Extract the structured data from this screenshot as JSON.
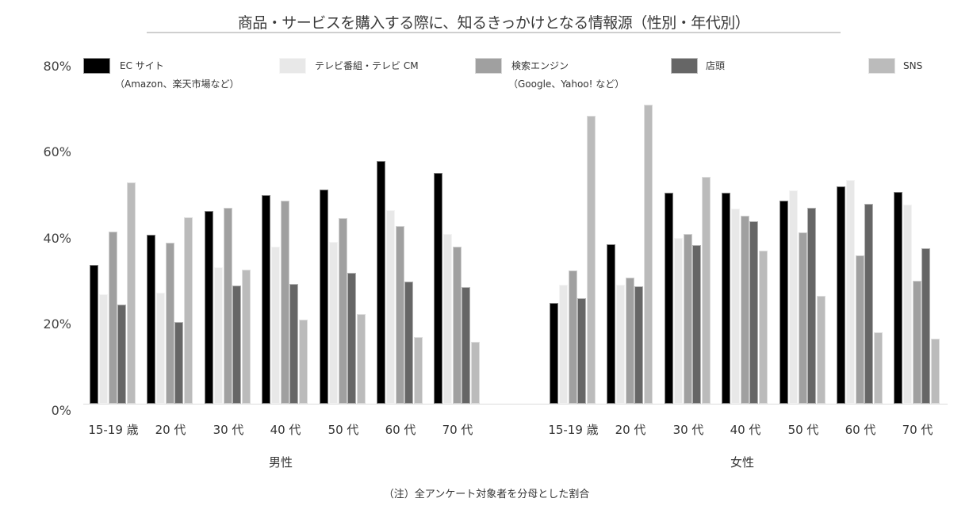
{
  "title": "商品・サービスを購入する際に、知るきっかけとなる情報源（性別・年代別）",
  "footnote": "（注）全アンケート対象者を分母とした割合",
  "yaxis": {
    "ticks": [
      "80%",
      "60%",
      "40%",
      "20%",
      "0%"
    ]
  },
  "legend": [
    {
      "label": "EC サイト",
      "sub": "（Amazon、楽天市場など）",
      "color": "#000000"
    },
    {
      "label": "テレビ番組・テレビ CM",
      "sub": "",
      "color": "#e8e8e8"
    },
    {
      "label": "検索エンジン",
      "sub": "（Google、Yahoo! など）",
      "color": "#a0a0a0"
    },
    {
      "label": "店頭",
      "sub": "",
      "color": "#666666"
    },
    {
      "label": "SNS",
      "sub": "",
      "color": "#bbbbbb"
    }
  ],
  "groups": [
    {
      "label": "男性",
      "categories": [
        "15-19 歳",
        "20 代",
        "30 代",
        "40 代",
        "50 代",
        "60 代",
        "70 代"
      ]
    },
    {
      "label": "女性",
      "categories": [
        "15-19 歳",
        "20 代",
        "30 代",
        "40 代",
        "50 代",
        "60 代",
        "70 代"
      ]
    }
  ],
  "chart_data": {
    "type": "bar",
    "title": "商品・サービスを購入する際に、知るきっかけとなる情報源（性別・年代別）",
    "xlabel": "",
    "ylabel": "",
    "ylim": [
      0,
      80
    ],
    "yticks": [
      0,
      20,
      40,
      60,
      80
    ],
    "grid": false,
    "legend_position": "top",
    "note": "（注）全アンケート対象者を分母とした割合",
    "categories": [
      "男性 15-19 歳",
      "男性 20 代",
      "男性 30 代",
      "男性 40 代",
      "男性 50 代",
      "男性 60 代",
      "男性 70 代",
      "女性 15-19 歳",
      "女性 20 代",
      "女性 30 代",
      "女性 40 代",
      "女性 50 代",
      "女性 60 代",
      "女性 70 代"
    ],
    "series": [
      {
        "name": "EC サイト（Amazon、楽天市場など）",
        "color": "#000000",
        "values": [
          32.3,
          39.3,
          44.8,
          48.5,
          49.8,
          56.4,
          53.6,
          23.4,
          37.0,
          49.0,
          49.0,
          47.2,
          50.5,
          49.2
        ]
      },
      {
        "name": "テレビ番組・テレビ CM",
        "color": "#e8e8e8",
        "values": [
          25.4,
          25.8,
          31.7,
          36.5,
          37.6,
          45.0,
          39.4,
          27.6,
          27.6,
          38.5,
          45.3,
          49.6,
          52.0,
          46.3
        ]
      },
      {
        "name": "検索エンジン（Google、Yahoo! など）",
        "color": "#a0a0a0",
        "values": [
          40.0,
          37.4,
          45.5,
          47.2,
          43.1,
          41.3,
          36.5,
          31.0,
          29.3,
          39.4,
          43.7,
          39.8,
          34.5,
          28.6
        ]
      },
      {
        "name": "店頭",
        "color": "#666666",
        "values": [
          23.0,
          19.0,
          27.5,
          27.8,
          30.4,
          28.4,
          27.1,
          24.5,
          27.3,
          36.9,
          42.4,
          45.5,
          46.5,
          36.1
        ]
      },
      {
        "name": "SNS",
        "color": "#bbbbbb",
        "values": [
          51.4,
          43.3,
          31.2,
          19.5,
          20.8,
          15.5,
          14.4,
          66.9,
          69.5,
          52.7,
          35.6,
          25.1,
          16.6,
          15.1
        ]
      }
    ]
  }
}
